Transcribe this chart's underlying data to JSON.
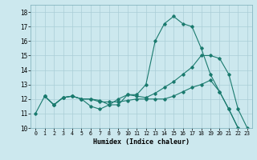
{
  "xlabel": "Humidex (Indice chaleur)",
  "xlim": [
    -0.5,
    23.5
  ],
  "ylim": [
    10,
    18.5
  ],
  "yticks": [
    10,
    11,
    12,
    13,
    14,
    15,
    16,
    17,
    18
  ],
  "xticks": [
    0,
    1,
    2,
    3,
    4,
    5,
    6,
    7,
    8,
    9,
    10,
    11,
    12,
    13,
    14,
    15,
    16,
    17,
    18,
    19,
    20,
    21,
    22,
    23
  ],
  "bg_color": "#cce8ee",
  "grid_color": "#aacdd6",
  "line_color": "#1a7a6e",
  "line1_x": [
    0,
    1,
    2,
    3,
    4,
    5,
    6,
    7,
    8,
    9,
    10,
    11,
    12,
    13,
    14,
    15,
    16,
    17,
    18,
    19,
    20,
    21,
    22
  ],
  "line1_y": [
    11.0,
    12.2,
    11.6,
    12.1,
    12.2,
    12.0,
    11.5,
    11.3,
    11.6,
    11.6,
    12.3,
    12.3,
    13.0,
    16.0,
    17.2,
    17.7,
    17.2,
    17.0,
    15.5,
    13.7,
    12.5,
    11.3,
    10.0
  ],
  "line2_x": [
    1,
    2,
    3,
    4,
    5,
    6,
    7,
    8,
    9,
    10,
    11,
    12,
    13,
    14,
    15,
    16,
    17,
    18,
    19,
    20,
    21,
    22,
    23
  ],
  "line2_y": [
    12.2,
    11.6,
    12.1,
    12.2,
    12.0,
    12.0,
    11.9,
    11.6,
    12.0,
    12.3,
    12.2,
    12.1,
    12.4,
    12.8,
    13.2,
    13.7,
    14.2,
    15.0,
    15.0,
    14.8,
    13.7,
    11.3,
    10.0
  ],
  "line3_x": [
    1,
    2,
    3,
    4,
    5,
    6,
    7,
    8,
    9,
    10,
    11,
    12,
    13,
    14,
    15,
    16,
    17,
    18,
    19,
    20,
    21,
    22
  ],
  "line3_y": [
    12.2,
    11.6,
    12.1,
    12.2,
    12.0,
    12.0,
    11.8,
    11.8,
    11.8,
    11.9,
    12.0,
    12.0,
    12.0,
    12.0,
    12.2,
    12.5,
    12.8,
    13.0,
    13.3,
    12.5,
    11.3,
    10.0
  ]
}
